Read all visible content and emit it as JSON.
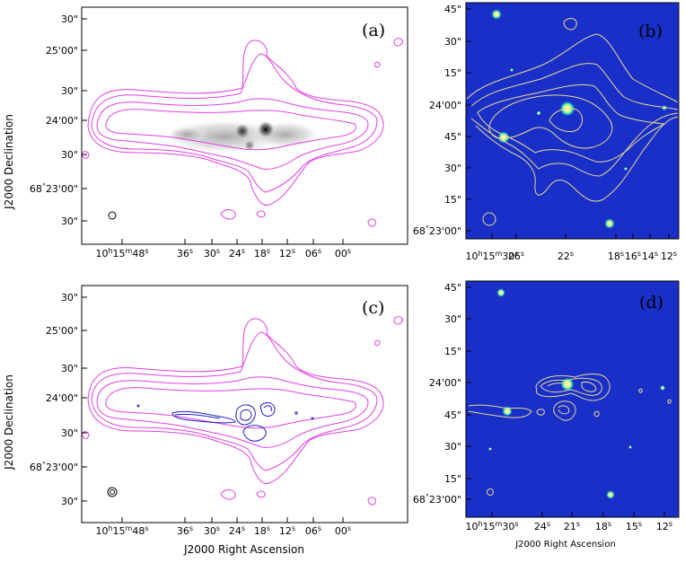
{
  "figure": {
    "ylabel": "J2000 Declination",
    "xlabel": "J2000 Right Ascension"
  },
  "chart_data": [
    {
      "type": "image-contour",
      "panel": "(a)",
      "background": "greyscale",
      "contour_color": "#e040e0",
      "yticks": [
        "30\"",
        "25'00\"",
        "30\"",
        "24'00\"",
        "30\"",
        "68°23'00\"",
        "30\""
      ],
      "xticks": [
        "10h15m48s",
        "36s",
        "30s",
        "24s",
        "18s",
        "12s",
        "06s",
        "00s"
      ]
    },
    {
      "type": "image-contour",
      "panel": "(b)",
      "background": "#1a2fc8",
      "contour_color": "#e6d890",
      "yticks": [
        "45\"",
        "30\"",
        "15\"",
        "24'00\"",
        "45\"",
        "30\"",
        "15\"",
        "68°23'00\""
      ],
      "xticks": [
        "10h15m30s",
        "26s",
        "22s",
        "18s",
        "16s",
        "14s",
        "12s"
      ]
    },
    {
      "type": "image-contour",
      "panel": "(c)",
      "background": "white",
      "contour_color": "#e040e0",
      "second_contour_color": "#2020c0",
      "yticks": [
        "30\"",
        "25'00\"",
        "30\"",
        "24'00\"",
        "30\"",
        "68°23'00\"",
        "30\""
      ],
      "xticks": [
        "10h15m48s",
        "36s",
        "30s",
        "24s",
        "18s",
        "12s",
        "06s",
        "00s"
      ]
    },
    {
      "type": "image-contour",
      "panel": "(d)",
      "background": "#1a2fc8",
      "contour_color": "#e6d890",
      "yticks": [
        "45\"",
        "30\"",
        "15\"",
        "24'00\"",
        "45\"",
        "30\"",
        "15\"",
        "68°23'00\""
      ],
      "xticks": [
        "10h15m30s",
        "24s",
        "21s",
        "18s",
        "15s",
        "12s"
      ]
    }
  ]
}
